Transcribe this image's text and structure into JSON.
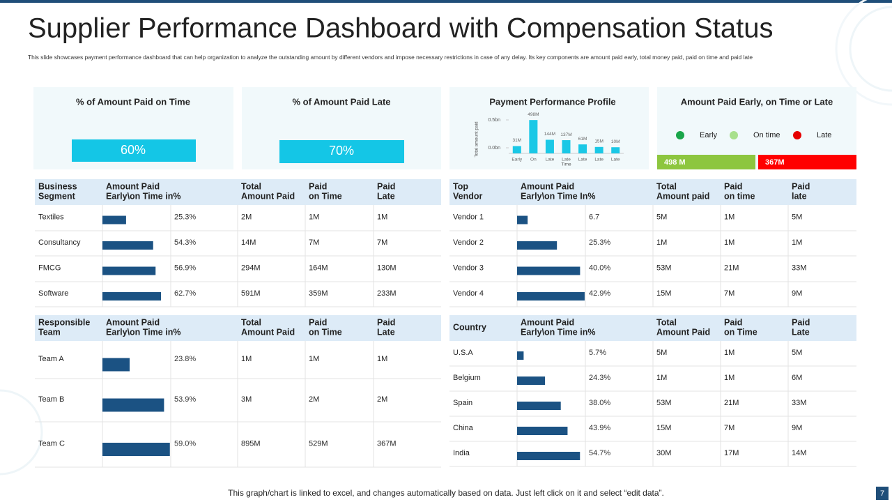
{
  "header": {
    "title": "Supplier Performance Dashboard with Compensation Status",
    "subtitle": "This slide showcases payment performance dashboard  that can help organization  to analyze the outstanding amount by different vendors and impose necessary restrictions in case of any delay.  Its key components are amount paid early, total money paid, paid on time and paid late"
  },
  "cards": [
    {
      "title": "% of Amount Paid on Time",
      "value": "60%"
    },
    {
      "title": "% of Amount Paid Late",
      "value": "70%"
    }
  ],
  "chart_data": {
    "type": "bar",
    "title": "Payment Performance Profile",
    "categories": [
      "Early",
      "On",
      "Late",
      "Late",
      "Late",
      "Late",
      "Late"
    ],
    "values": [
      0.031,
      0.498,
      0.144,
      0.137,
      0.061,
      0.015,
      0.01
    ],
    "value_labels": [
      "31M",
      "498M",
      "144M",
      "137M",
      "61M",
      "15M",
      "10M"
    ],
    "ylim": [
      0,
      0.6
    ],
    "yticks": [
      {
        "value": 0,
        "label": "0.0bn"
      },
      {
        "value": 0.5,
        "label": "0.5bn"
      }
    ],
    "y_label": "Total amount paid",
    "x_label": "Time",
    "color": "#1ac8e6"
  },
  "legend_card": {
    "title": "Amount Paid Early, on Time or Late",
    "legend": [
      {
        "name": "Early",
        "color": "#1aa64a"
      },
      {
        "name": "On time",
        "color": "#a8e08c"
      },
      {
        "name": "Late",
        "color": "#e60000"
      }
    ],
    "bars": [
      {
        "label": "498 M",
        "color": "#8dc63f"
      },
      {
        "label": "367M",
        "color": "#ff0000"
      }
    ]
  },
  "tables": [
    {
      "columns": [
        "Business\nSegment",
        "Amount  Paid\nEarly\\on  Time in%",
        "Total\nAmount Paid",
        "Paid\non Time",
        "Paid\nLate"
      ],
      "rows": [
        [
          "Textiles",
          {
            "value": 25.3,
            "label": "25.3%"
          },
          "2M",
          "1M",
          "1M"
        ],
        [
          "Consultancy",
          {
            "value": 54.3,
            "label": "54.3%"
          },
          "14M",
          "7M",
          "7M"
        ],
        [
          "FMCG",
          {
            "value": 56.9,
            "label": "56.9%"
          },
          "294M",
          "164M",
          "130M"
        ],
        [
          "Software",
          {
            "value": 62.7,
            "label": "62.7%"
          },
          "591M",
          "359M",
          "233M"
        ]
      ]
    },
    {
      "columns": [
        "Top\nVendor",
        "Amount  Paid\nEarly\\on  Time In%",
        "Total\nAmount  paid",
        "Paid\non time",
        "Paid\nlate"
      ],
      "rows": [
        [
          "Vendor 1",
          6.7,
          "5M",
          "1M",
          "5M"
        ],
        [
          "Vendor 2",
          {
            "value": 25.3,
            "label": "25.3%"
          },
          "1M",
          "1M",
          "1M"
        ],
        [
          "Vendor 3",
          {
            "value": 40.0,
            "label": "40.0%"
          },
          "53M",
          "21M",
          "33M"
        ],
        [
          "Vendor 4",
          {
            "value": 42.9,
            "label": "42.9%"
          },
          "15M",
          "7M",
          "9M"
        ]
      ]
    },
    {
      "columns": [
        "Responsible\nTeam",
        "Amount  Paid\nEarly\\on  Time in%",
        "Total\nAmount Paid",
        "Paid\non Time",
        "Paid\nLate"
      ],
      "rows": [
        [
          "Team A",
          {
            "value": 23.8,
            "label": "23.8%"
          },
          "1M",
          "1M",
          "1M"
        ],
        [
          "Team B",
          {
            "value": 53.9,
            "label": "53.9%"
          },
          "3M",
          "2M",
          "2M"
        ],
        [
          "Team C",
          {
            "value": 59.0,
            "label": "59.0%"
          },
          "895M",
          "529M",
          "367M"
        ]
      ]
    },
    {
      "columns": [
        "Country",
        "Amount  Paid\nEarly\\on  Time in%",
        "Total\nAmount Paid",
        "Paid\non Time",
        "Paid\nLate"
      ],
      "rows": [
        [
          "U.S.A",
          {
            "value": 5.7,
            "label": "5.7%"
          },
          "5M",
          "1M",
          "5M"
        ],
        [
          "Belgium",
          {
            "value": 24.3,
            "label": "24.3%"
          },
          "1M",
          "1M",
          "6M"
        ],
        [
          "Spain",
          {
            "value": 38.0,
            "label": "38.0%"
          },
          "53M",
          "21M",
          "33M"
        ],
        [
          "China",
          {
            "value": 43.9,
            "label": "43.9%"
          },
          "15M",
          "7M",
          "9M"
        ],
        [
          "India",
          {
            "value": 54.7,
            "label": "54.7%"
          },
          "30M",
          "17M",
          "14M"
        ]
      ]
    }
  ],
  "footer": {
    "note": "This graph/chart is linked to excel,  and changes automatically based on data. Just left click on it and select “edit data”.",
    "page": "7"
  }
}
